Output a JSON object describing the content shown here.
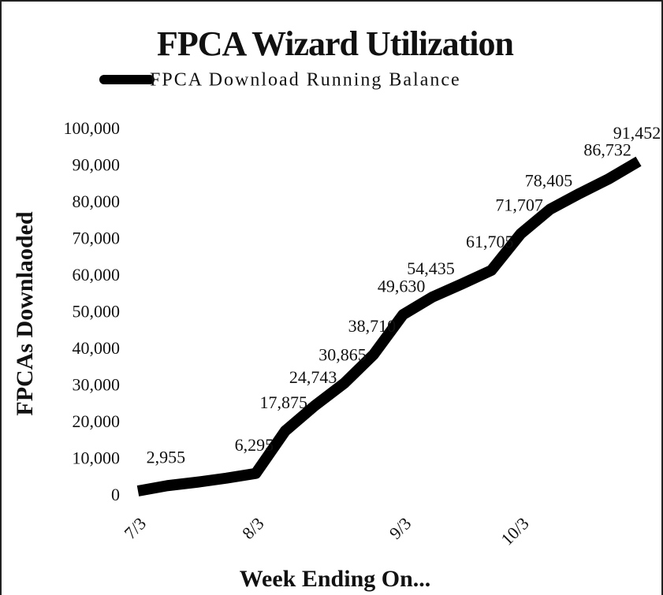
{
  "chart_data": {
    "type": "line",
    "title": "FPCA Wizard Utilization",
    "x_label": "Week Ending On...",
    "y_label": "FPCAs Downlaoded",
    "categories": [
      "7/3",
      null,
      null,
      null,
      "8/3",
      null,
      null,
      null,
      null,
      "9/3",
      null,
      null,
      null,
      "10/3",
      null,
      null,
      null,
      null
    ],
    "series": [
      {
        "name": "FPCA Download Running Balance",
        "color": "#000000",
        "values": [
          1500,
          2955,
          3900,
          5000,
          6295,
          17875,
          24743,
          30865,
          38710,
          49630,
          54435,
          58000,
          61705,
          71707,
          78405,
          82700,
          86732,
          91452
        ],
        "value_labels": [
          null,
          "2,955",
          null,
          null,
          "6,295",
          "17,875",
          "24,743",
          "30,865",
          "38,710",
          "49,630",
          "54,435",
          null,
          "61,705",
          "71,707",
          "78,405",
          null,
          "86,732",
          "91,452"
        ]
      }
    ],
    "ylim": [
      0,
      100000
    ],
    "yticks": [
      0,
      {
        "value": 10000,
        "label": "10,000"
      },
      {
        "value": 20000,
        "label": "20,000"
      },
      {
        "value": 30000,
        "label": "30,000"
      },
      {
        "value": 40000,
        "label": "40,000"
      },
      {
        "value": 50000,
        "label": "50,000"
      },
      {
        "value": 60000,
        "label": "60,000"
      },
      {
        "value": 70000,
        "label": "70,000"
      },
      {
        "value": 80000,
        "label": "80,000"
      },
      {
        "value": 90000,
        "label": "90,000"
      },
      {
        "value": 100000,
        "label": "100,000"
      }
    ],
    "grid": false,
    "legend": "top"
  }
}
